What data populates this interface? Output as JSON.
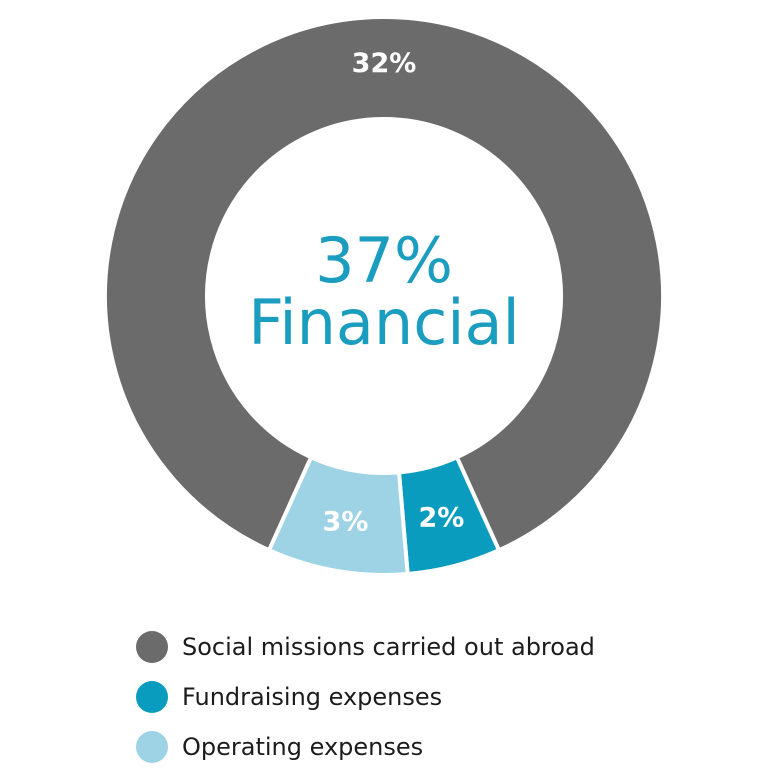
{
  "chart_data": {
    "type": "pie",
    "subtype": "donut",
    "center_label": {
      "value": "37%",
      "name": "Financial"
    },
    "slices": [
      {
        "name": "Social missions carried out abroad",
        "value": 32,
        "label": "32%",
        "color": "#6b6b6b"
      },
      {
        "name": "Fundraising expenses",
        "value": 2,
        "label": "2%",
        "color": "#0a9cbe"
      },
      {
        "name": "Operating expenses",
        "value": 3,
        "label": "3%",
        "color": "#9ed3e6"
      }
    ],
    "legend": {
      "position": "bottom-left",
      "items": [
        {
          "label": "Social missions carried out abroad",
          "color": "#6b6b6b"
        },
        {
          "label": "Fundraising expenses",
          "color": "#0a9cbe"
        },
        {
          "label": "Operating expenses",
          "color": "#9ed3e6"
        }
      ]
    },
    "colors": {
      "center_text": "#1a9dbf",
      "slice_separator": "#ffffff",
      "slice_label": "#ffffff"
    }
  }
}
